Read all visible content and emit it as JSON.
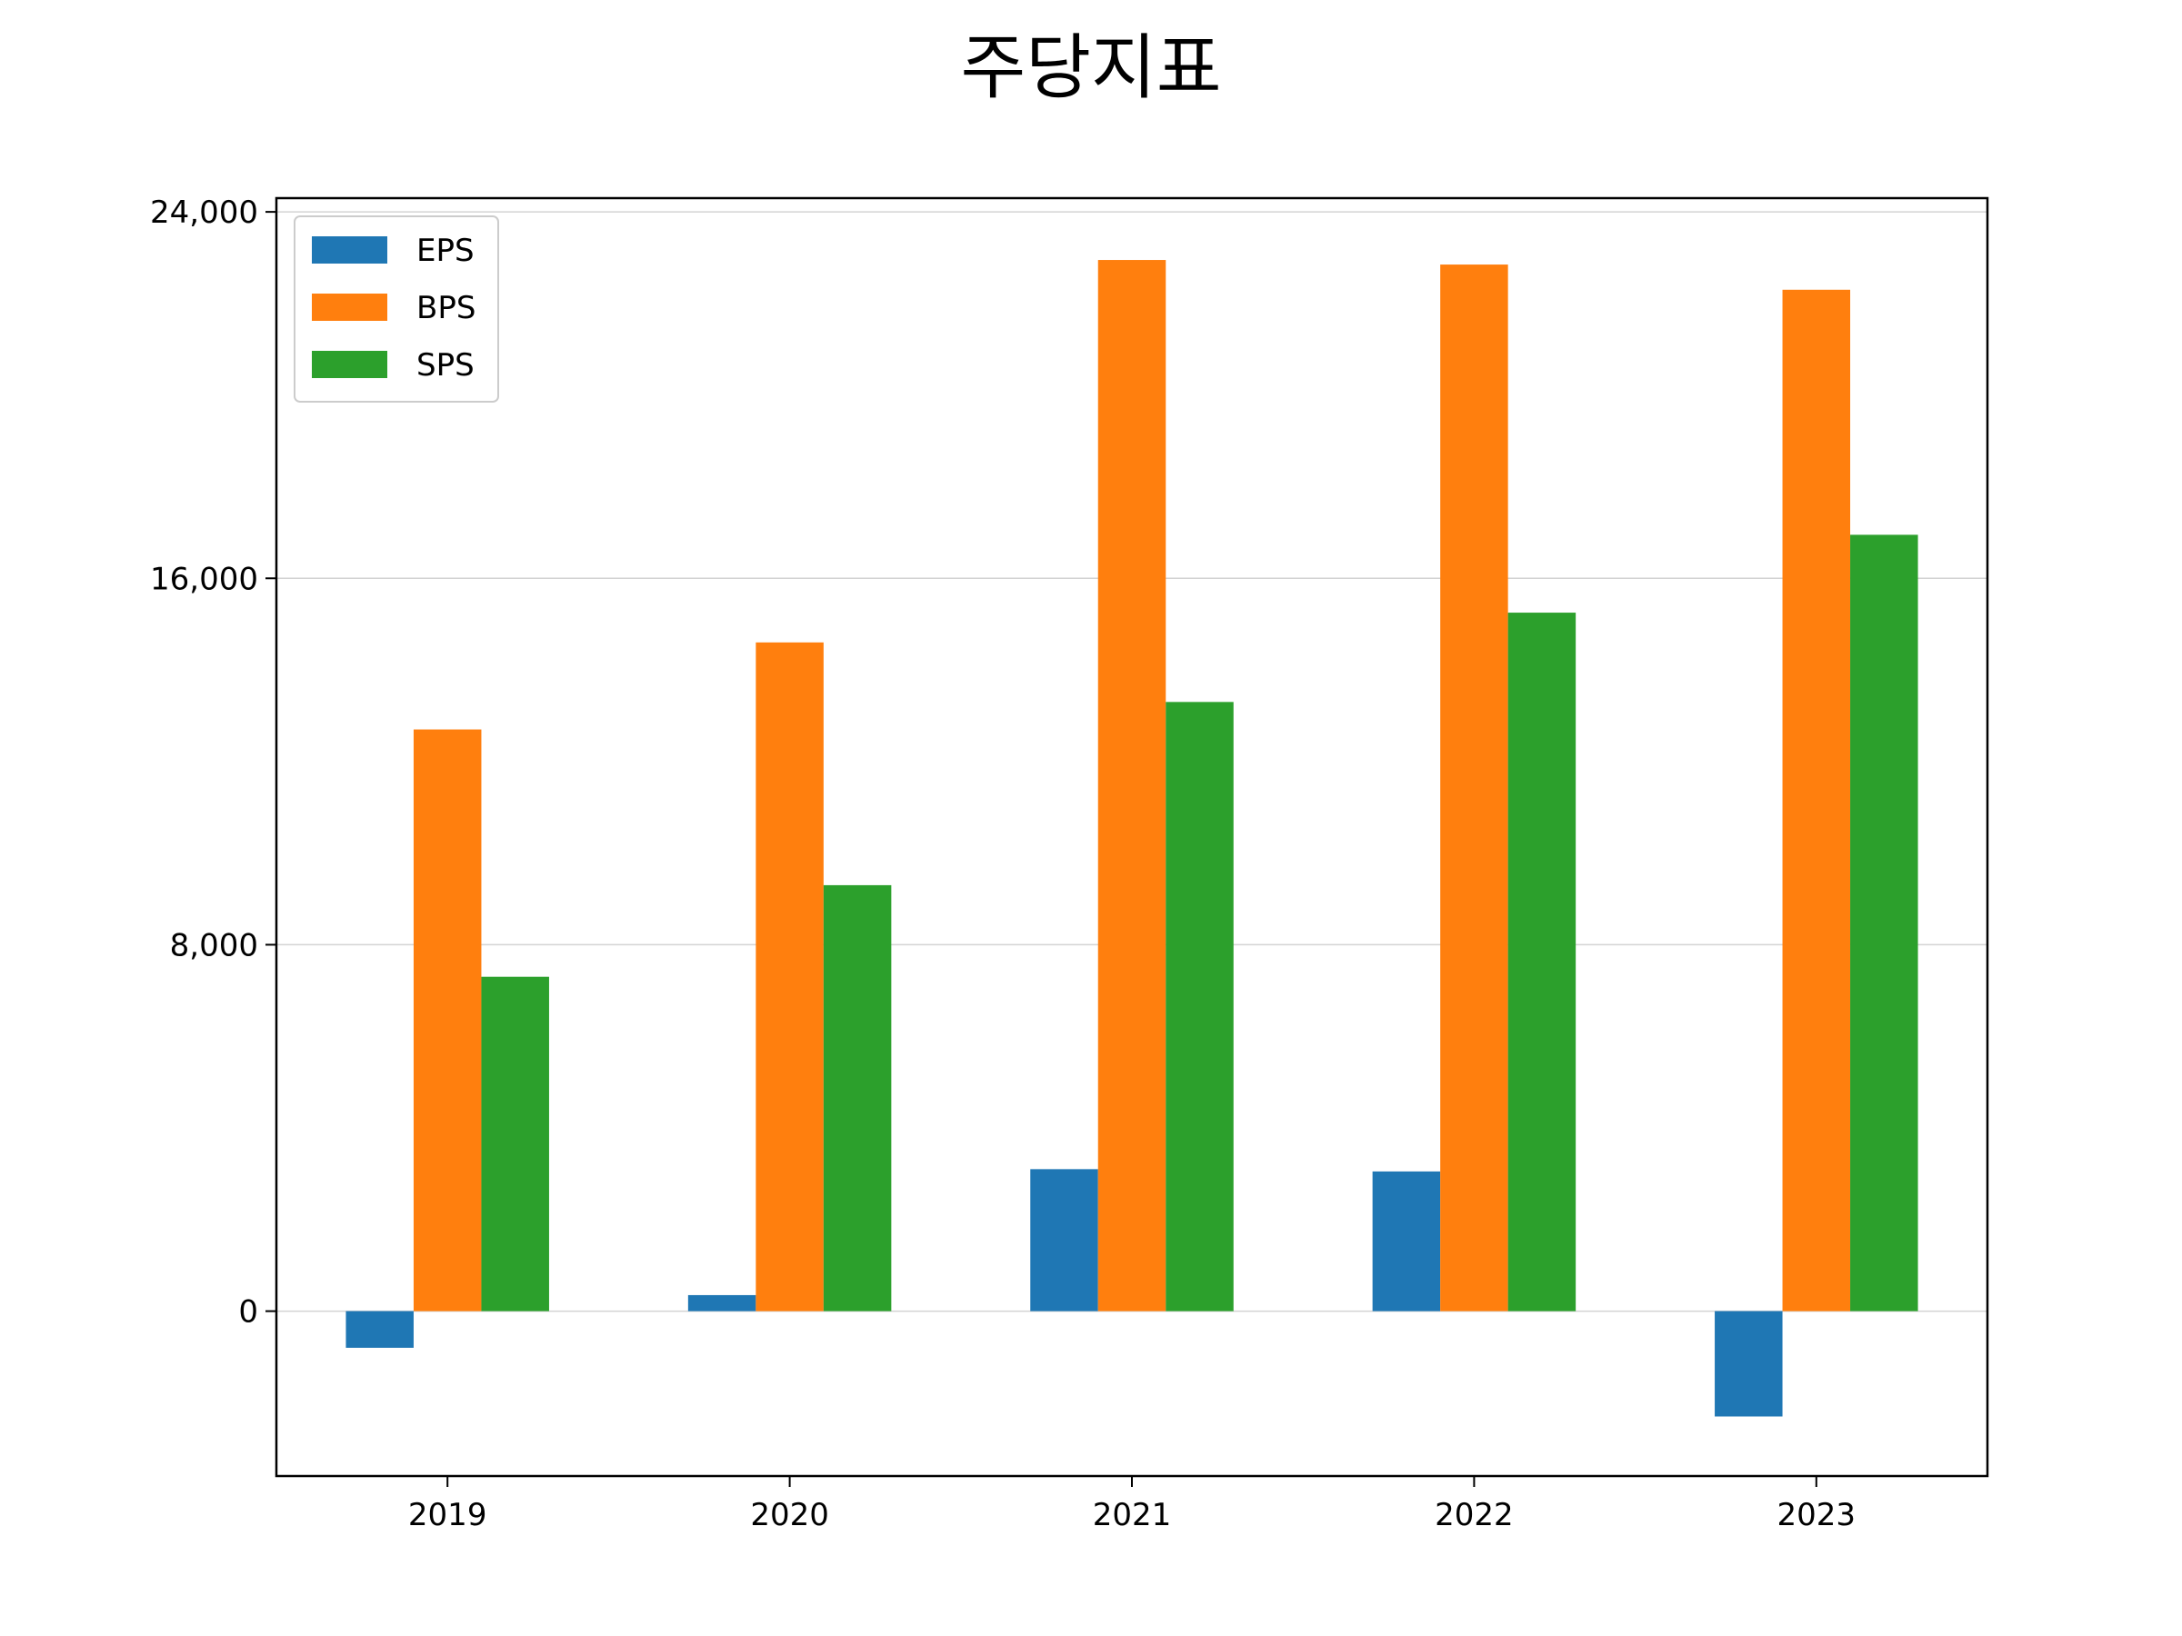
{
  "chart_data": {
    "type": "bar",
    "title": "주당지표",
    "xlabel": "",
    "ylabel": "",
    "categories": [
      "2019",
      "2020",
      "2021",
      "2022",
      "2023"
    ],
    "series": [
      {
        "name": "EPS",
        "color": "#1f77b4",
        "values": [
          -800,
          350,
          3100,
          3050,
          -2300
        ]
      },
      {
        "name": "BPS",
        "color": "#ff7f0e",
        "values": [
          12700,
          14600,
          22950,
          22850,
          22300
        ]
      },
      {
        "name": "SPS",
        "color": "#2ca02c",
        "values": [
          7300,
          9300,
          13300,
          15250,
          16950
        ]
      }
    ],
    "ylim": [
      -3600,
      24300
    ],
    "yticks": [
      0,
      8000,
      16000,
      24000
    ],
    "ytick_labels": [
      "0",
      "8,000",
      "16,000",
      "24,000"
    ],
    "grid": "horizontal",
    "legend_position": "top-left"
  }
}
